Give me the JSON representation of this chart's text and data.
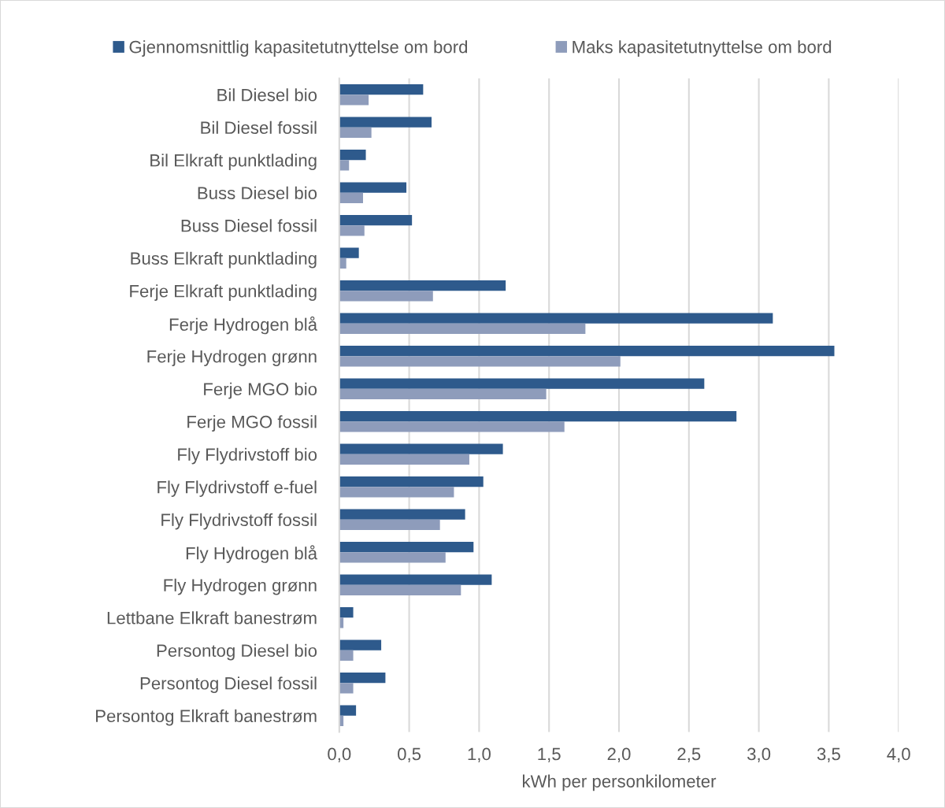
{
  "chart_data": {
    "type": "bar",
    "orientation": "horizontal",
    "categories": [
      "Bil Diesel bio",
      "Bil Diesel fossil",
      "Bil Elkraft punktlading",
      "Buss Diesel bio",
      "Buss Diesel fossil",
      "Buss Elkraft punktlading",
      "Ferje Elkraft punktlading",
      "Ferje Hydrogen blå",
      "Ferje Hydrogen grønn",
      "Ferje MGO bio",
      "Ferje MGO fossil",
      "Fly Flydrivstoff bio",
      "Fly Flydrivstoff e-fuel",
      "Fly Flydrivstoff fossil",
      "Fly Hydrogen blå",
      "Fly Hydrogen grønn",
      "Lettbane Elkraft banestrøm",
      "Persontog Diesel bio",
      "Persontog Diesel fossil",
      "Persontog Elkraft banestrøm"
    ],
    "series": [
      {
        "name": "Gjennomsnittlig kapasitetutnyttelse om bord",
        "color": "#2e5a8c",
        "values": [
          0.6,
          0.66,
          0.19,
          0.48,
          0.52,
          0.14,
          1.19,
          3.1,
          3.54,
          2.61,
          2.84,
          1.17,
          1.03,
          0.9,
          0.96,
          1.09,
          0.1,
          0.3,
          0.33,
          0.12
        ]
      },
      {
        "name": "Maks kapasitetutnyttelse om bord",
        "color": "#8e9cbb",
        "values": [
          0.21,
          0.23,
          0.07,
          0.17,
          0.18,
          0.05,
          0.67,
          1.76,
          2.01,
          1.48,
          1.61,
          0.93,
          0.82,
          0.72,
          0.76,
          0.87,
          0.03,
          0.1,
          0.1,
          0.03
        ]
      }
    ],
    "xlabel": "kWh per personkilometer",
    "xlim": [
      0,
      4
    ],
    "xticks": [
      {
        "value": 0,
        "label": "0,0"
      },
      {
        "value": 0.5,
        "label": "0,5"
      },
      {
        "value": 1,
        "label": "1,0"
      },
      {
        "value": 1.5,
        "label": "1,5"
      },
      {
        "value": 2,
        "label": "2,0"
      },
      {
        "value": 2.5,
        "label": "2,5"
      },
      {
        "value": 3,
        "label": "3,0"
      },
      {
        "value": 3.5,
        "label": "3,5"
      },
      {
        "value": 4,
        "label": "4,0"
      }
    ],
    "grid": "x",
    "legend": "top"
  }
}
